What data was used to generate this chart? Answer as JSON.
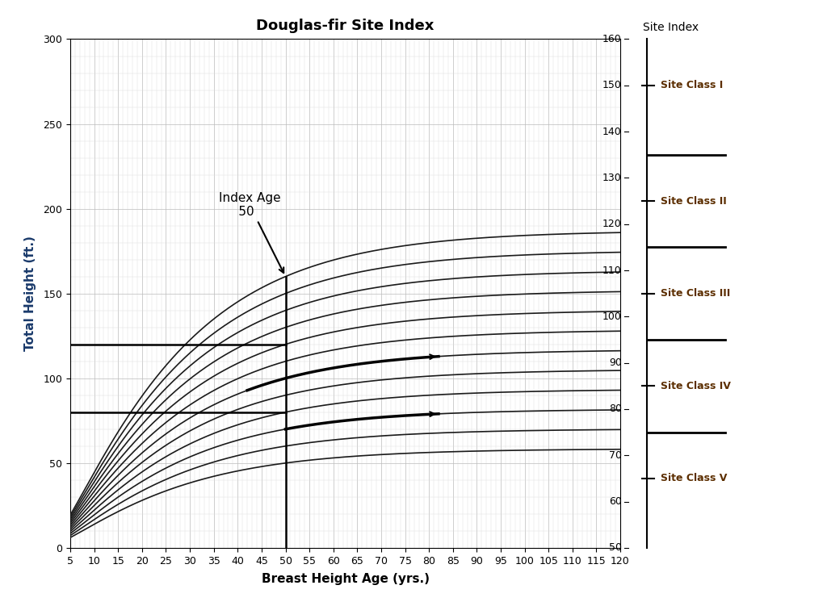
{
  "title": "Douglas-fir Site Index",
  "xlabel": "Breast Height Age (yrs.)",
  "ylabel": "Total Height (ft.)",
  "site_index_label": "Site Index",
  "xlim": [
    5,
    120
  ],
  "ylim": [
    0,
    300
  ],
  "xticks": [
    5,
    10,
    15,
    20,
    25,
    30,
    35,
    40,
    45,
    50,
    55,
    60,
    65,
    70,
    75,
    80,
    85,
    90,
    95,
    100,
    105,
    110,
    115,
    120
  ],
  "yticks_labeled": [
    0,
    50,
    100,
    150,
    200,
    250,
    300
  ],
  "yticks_minor_step": 10,
  "site_indices": [
    50,
    60,
    70,
    80,
    90,
    100,
    110,
    120,
    130,
    140,
    150,
    160
  ],
  "index_age": 50,
  "site_classes": [
    {
      "name": "Site Class I",
      "si_min": 140,
      "si_max": 160,
      "label_si": 150
    },
    {
      "name": "Site Class II",
      "si_min": 120,
      "si_max": 130,
      "label_si": 125
    },
    {
      "name": "Site Class III",
      "si_min": 100,
      "si_max": 110,
      "label_si": 105
    },
    {
      "name": "Site Class IV",
      "si_min": 80,
      "si_max": 90,
      "label_si": 85
    },
    {
      "name": "Site Class V",
      "si_min": 60,
      "si_max": 70,
      "label_si": 65
    }
  ],
  "dividers_si": [
    135,
    115,
    95,
    75
  ],
  "bg_color": "#ffffff",
  "curve_color": "#1a1a1a",
  "title_fontsize": 13,
  "axis_label_fontsize": 11,
  "tick_fontsize": 9,
  "annotation_fontsize": 11,
  "si_axis_min": 50,
  "si_axis_max": 160,
  "bold_si_curves": [
    100,
    70
  ],
  "horiz_line1_y": 120,
  "horiz_line2_y": 80,
  "vert_line_x": 50,
  "traj1_si": 100,
  "traj1_age_start": 42,
  "traj1_age_end": 82,
  "traj2_si": 70,
  "traj2_age_start": 50,
  "traj2_age_end": 82,
  "arrow1_age": 82,
  "arrow2_age": 82
}
